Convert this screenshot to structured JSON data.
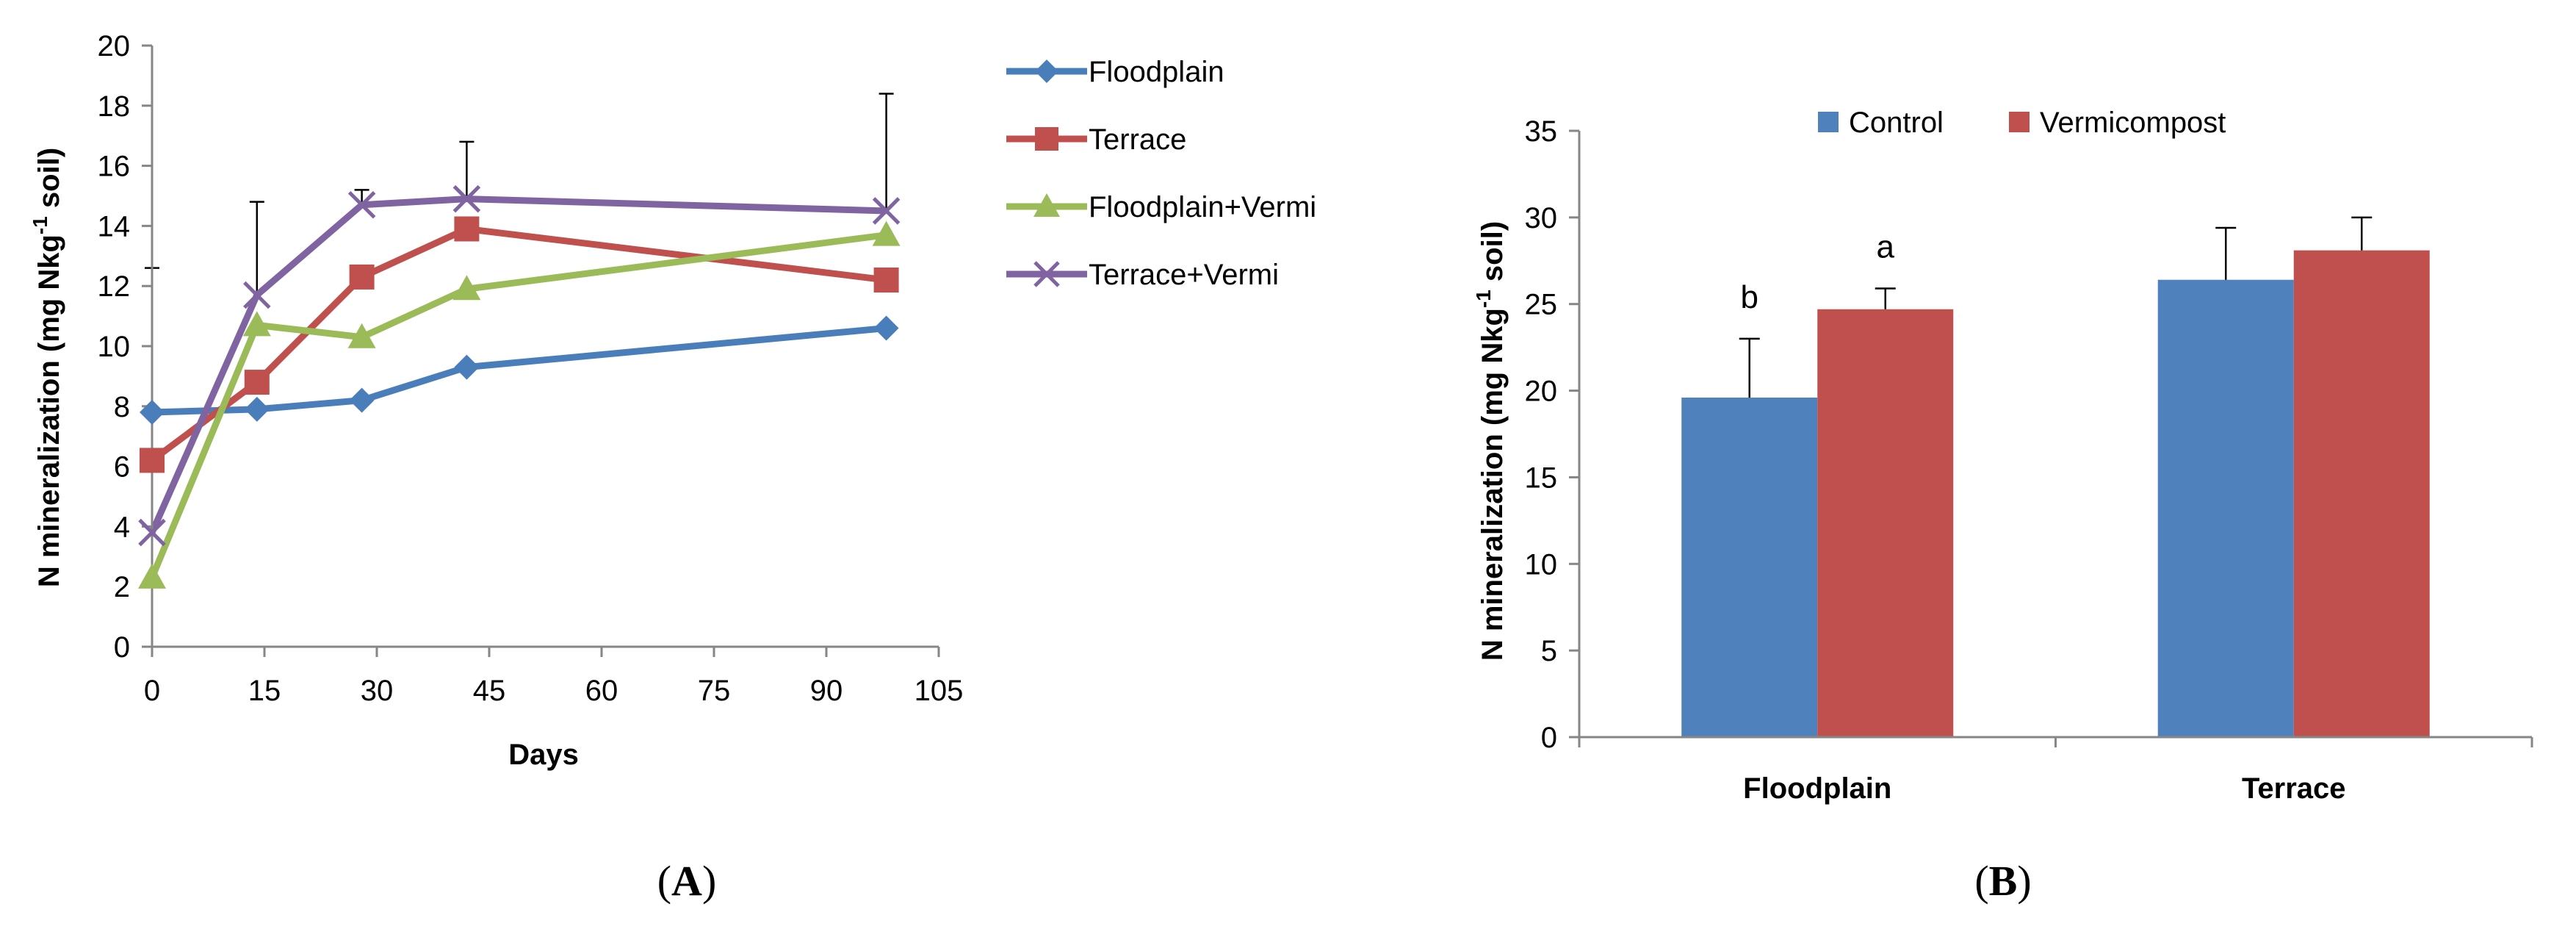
{
  "colors": {
    "floodplain": "#4a7ebb",
    "terrace": "#c0504d",
    "floodplain_vermi": "#9bbb59",
    "terrace_vermi": "#8064a2",
    "control": "#4f81bd",
    "vermicompost": "#c0504d",
    "axis": "#868686"
  },
  "chart_data": [
    {
      "type": "line",
      "panel_label": "(A)",
      "panel_letter": "A",
      "xlabel": "Days",
      "ylabel": "N mineralization (mg Nkg-1 soil)",
      "ylabel_main": "N mineralization (mg Nkg",
      "ylabel_sup": "-1",
      "ylabel_tail": " soil)",
      "xlim": [
        0,
        105
      ],
      "ylim": [
        0,
        20
      ],
      "x_ticks": [
        0,
        15,
        30,
        45,
        60,
        75,
        90,
        105
      ],
      "y_ticks": [
        0,
        2,
        4,
        6,
        8,
        10,
        12,
        14,
        16,
        18,
        20
      ],
      "legend_position": "right",
      "series": [
        {
          "name": "Floodplain",
          "marker": "diamond",
          "color_key": "floodplain",
          "x": [
            0,
            14,
            28,
            42,
            98
          ],
          "values": [
            7.8,
            7.9,
            8.2,
            9.3,
            10.6
          ],
          "errors": [
            0.0,
            0.0,
            0.0,
            0.0,
            0.0
          ]
        },
        {
          "name": "Terrace",
          "marker": "square",
          "color_key": "terrace",
          "x": [
            0,
            14,
            28,
            42,
            98
          ],
          "values": [
            6.2,
            8.8,
            12.3,
            13.9,
            12.2
          ],
          "errors": [
            0.0,
            0.0,
            0.0,
            0.0,
            0.0
          ]
        },
        {
          "name": "Floodplain+Vermi",
          "marker": "triangle",
          "color_key": "floodplain_vermi",
          "x": [
            0,
            14,
            28,
            42,
            98
          ],
          "values": [
            2.3,
            10.7,
            10.3,
            11.9,
            13.7
          ],
          "errors": [
            0.0,
            0.0,
            0.0,
            0.0,
            0.0
          ]
        },
        {
          "name": "Terrace+Vermi",
          "marker": "x",
          "color_key": "terrace_vermi",
          "x": [
            0,
            14,
            28,
            42,
            98
          ],
          "values": [
            3.8,
            11.7,
            14.7,
            14.9,
            14.5
          ],
          "errors": [
            8.8,
            3.1,
            0.5,
            1.9,
            3.9
          ]
        }
      ]
    },
    {
      "type": "bar",
      "panel_label": "(B)",
      "panel_letter": "B",
      "xlabel": "",
      "ylabel": "N mineralization (mg Nkg-1 soil)",
      "ylabel_main": "N mineralization (mg Nkg",
      "ylabel_sup": "-1",
      "ylabel_tail": " soil)",
      "categories": [
        "Floodplain",
        "Terrace"
      ],
      "ylim": [
        0,
        35
      ],
      "y_ticks": [
        0,
        5,
        10,
        15,
        20,
        25,
        30,
        35
      ],
      "legend_position": "top",
      "series": [
        {
          "name": "Control",
          "color_key": "control",
          "values": [
            19.6,
            26.4
          ],
          "errors": [
            3.4,
            3.0
          ],
          "labels": [
            "b",
            ""
          ]
        },
        {
          "name": "Vermicompost",
          "color_key": "vermicompost",
          "values": [
            24.7,
            28.1
          ],
          "errors": [
            1.2,
            1.9
          ],
          "labels": [
            "a",
            ""
          ]
        }
      ]
    }
  ]
}
